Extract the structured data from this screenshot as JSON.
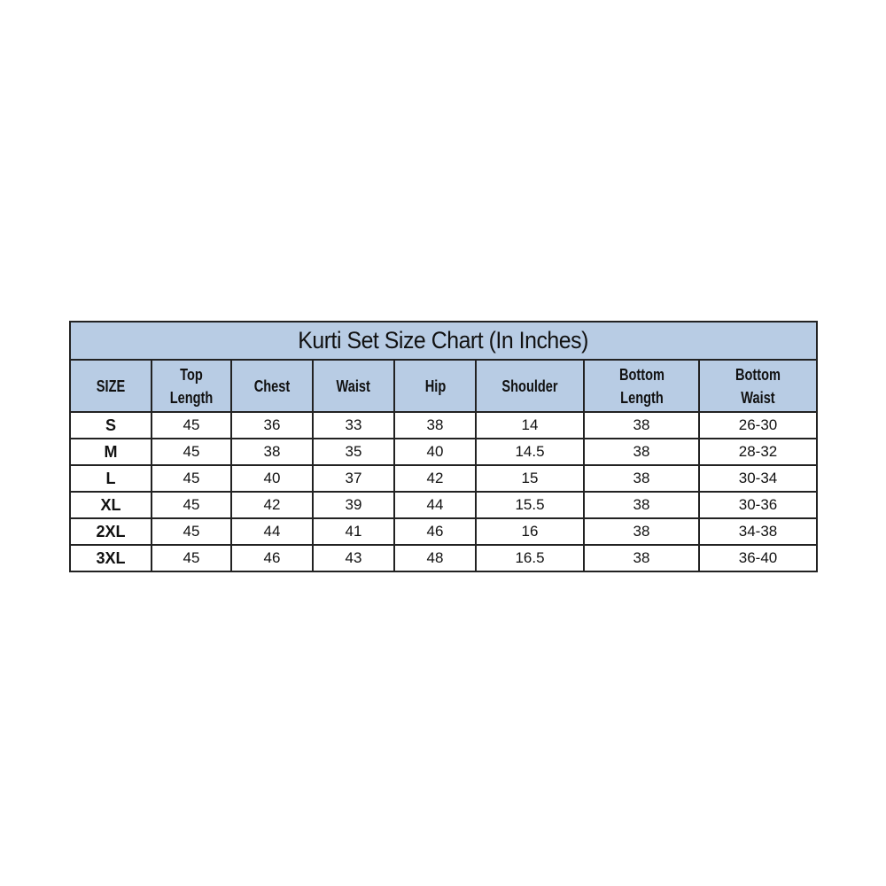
{
  "title": "Kurti Set Size Chart (In Inches)",
  "header_color": "#b8cce4",
  "columns": [
    [
      "SIZE"
    ],
    [
      "Top",
      "Length"
    ],
    [
      "Chest"
    ],
    [
      "Waist"
    ],
    [
      "Hip"
    ],
    [
      "Shoulder"
    ],
    [
      "Bottom",
      "Length"
    ],
    [
      "Bottom",
      "Waist"
    ]
  ],
  "rows": [
    [
      "S",
      "45",
      "36",
      "33",
      "38",
      "14",
      "38",
      "26-30"
    ],
    [
      "M",
      "45",
      "38",
      "35",
      "40",
      "14.5",
      "38",
      "28-32"
    ],
    [
      "L",
      "45",
      "40",
      "37",
      "42",
      "15",
      "38",
      "30-34"
    ],
    [
      "XL",
      "45",
      "42",
      "39",
      "44",
      "15.5",
      "38",
      "30-36"
    ],
    [
      "2XL",
      "45",
      "44",
      "41",
      "46",
      "16",
      "38",
      "34-38"
    ],
    [
      "3XL",
      "45",
      "46",
      "43",
      "48",
      "16.5",
      "38",
      "36-40"
    ]
  ]
}
